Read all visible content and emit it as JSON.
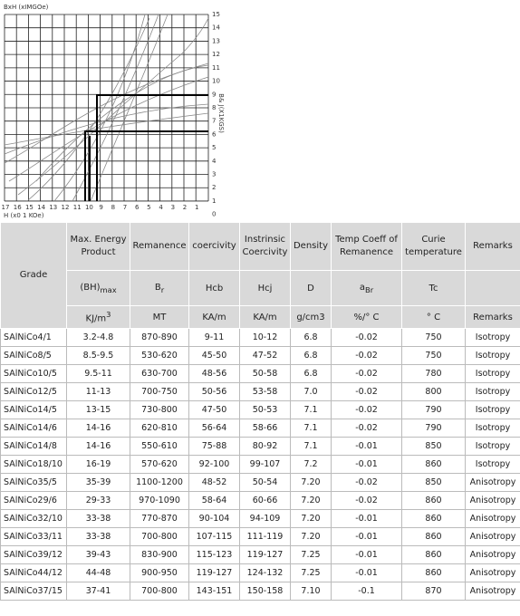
{
  "chart": {
    "y_axis_label": "BxH (xIMGOe)",
    "right_axis_label": "B& J(X1KGS)",
    "x_axis_label": "H (x0 1 KOe)",
    "right_ticks": [
      15,
      14,
      13,
      12,
      11,
      10,
      9,
      8,
      7,
      6,
      5,
      4,
      3,
      2,
      1,
      0
    ],
    "bottom_ticks": [
      17,
      16,
      15,
      14,
      13,
      12,
      11,
      10,
      9,
      8,
      7,
      6,
      5,
      4,
      3,
      2,
      1
    ]
  },
  "table": {
    "columns": [
      {
        "title": "Grade"
      },
      {
        "title": "Max. Energy Product",
        "symbol": "(BH)",
        "symbol_sub": "max",
        "unit": "KJ/m",
        "unit_sup": "3"
      },
      {
        "title": "Remanence",
        "symbol": "B",
        "symbol_sub": "r",
        "unit": "MT"
      },
      {
        "title": "coercivity",
        "symbol": "Hcb",
        "unit": "KA/m"
      },
      {
        "title": "Instrinsic Coercivity",
        "symbol": "Hcj",
        "unit": "KA/m"
      },
      {
        "title": "Density",
        "symbol": "D",
        "unit": "g/cm3"
      },
      {
        "title": "Temp Coeff of Remanence",
        "symbol": "a",
        "symbol_sub": "Br",
        "unit": "%/° C"
      },
      {
        "title": "Curie temperature",
        "symbol": "Tc",
        "unit": "° C"
      },
      {
        "title": "Remarks",
        "unit": "Remarks"
      }
    ],
    "rows": [
      [
        "SAlNiCo4/1",
        "3.2-4.8",
        "870-890",
        "9-11",
        "10-12",
        "6.8",
        "-0.02",
        "750",
        "Isotropy"
      ],
      [
        "SAlNiCo8/5",
        "8.5-9.5",
        "530-620",
        "45-50",
        "47-52",
        "6.8",
        "-0.02",
        "750",
        "Isotropy"
      ],
      [
        "SAlNiCo10/5",
        "9.5-11",
        "630-700",
        "48-56",
        "50-58",
        "6.8",
        "-0.02",
        "780",
        "Isotropy"
      ],
      [
        "SAlNiCo12/5",
        "11-13",
        "700-750",
        "50-56",
        "53-58",
        "7.0",
        "-0.02",
        "800",
        "Isotropy"
      ],
      [
        "SAlNiCo14/5",
        "13-15",
        "730-800",
        "47-50",
        "50-53",
        "7.1",
        "-0.02",
        "790",
        "Isotropy"
      ],
      [
        "SAlNiCo14/6",
        "14-16",
        "620-810",
        "56-64",
        "58-66",
        "7.1",
        "-0.02",
        "790",
        "Isotropy"
      ],
      [
        "SAlNiCo14/8",
        "14-16",
        "550-610",
        "75-88",
        "80-92",
        "7.1",
        "-0.01",
        "850",
        "Isotropy"
      ],
      [
        "SAlNiCo18/10",
        "16-19",
        "570-620",
        "92-100",
        "99-107",
        "7.2",
        "-0.01",
        "860",
        "Isotropy"
      ],
      [
        "SAlNiCo35/5",
        "35-39",
        "1100-1200",
        "48-52",
        "50-54",
        "7.20",
        "-0.02",
        "850",
        "Anisotropy"
      ],
      [
        "SAlNiCo29/6",
        "29-33",
        "970-1090",
        "58-64",
        "60-66",
        "7.20",
        "-0.02",
        "860",
        "Anisotropy"
      ],
      [
        "SAlNiCo32/10",
        "33-38",
        "770-870",
        "90-104",
        "94-109",
        "7.20",
        "-0.01",
        "860",
        "Anisotropy"
      ],
      [
        "SAlNiCo33/11",
        "33-38",
        "700-800",
        "107-115",
        "111-119",
        "7.20",
        "-0.01",
        "860",
        "Anisotropy"
      ],
      [
        "SAlNiCo39/12",
        "39-43",
        "830-900",
        "115-123",
        "119-127",
        "7.25",
        "-0.01",
        "860",
        "Anisotropy"
      ],
      [
        "SAlNiCo44/12",
        "44-48",
        "900-950",
        "119-127",
        "124-132",
        "7.25",
        "-0.01",
        "860",
        "Anisotropy"
      ],
      [
        "SAlNiCo37/15",
        "37-41",
        "700-800",
        "143-151",
        "150-158",
        "7.10",
        "-0.1",
        "870",
        "Anisotropy"
      ]
    ]
  }
}
